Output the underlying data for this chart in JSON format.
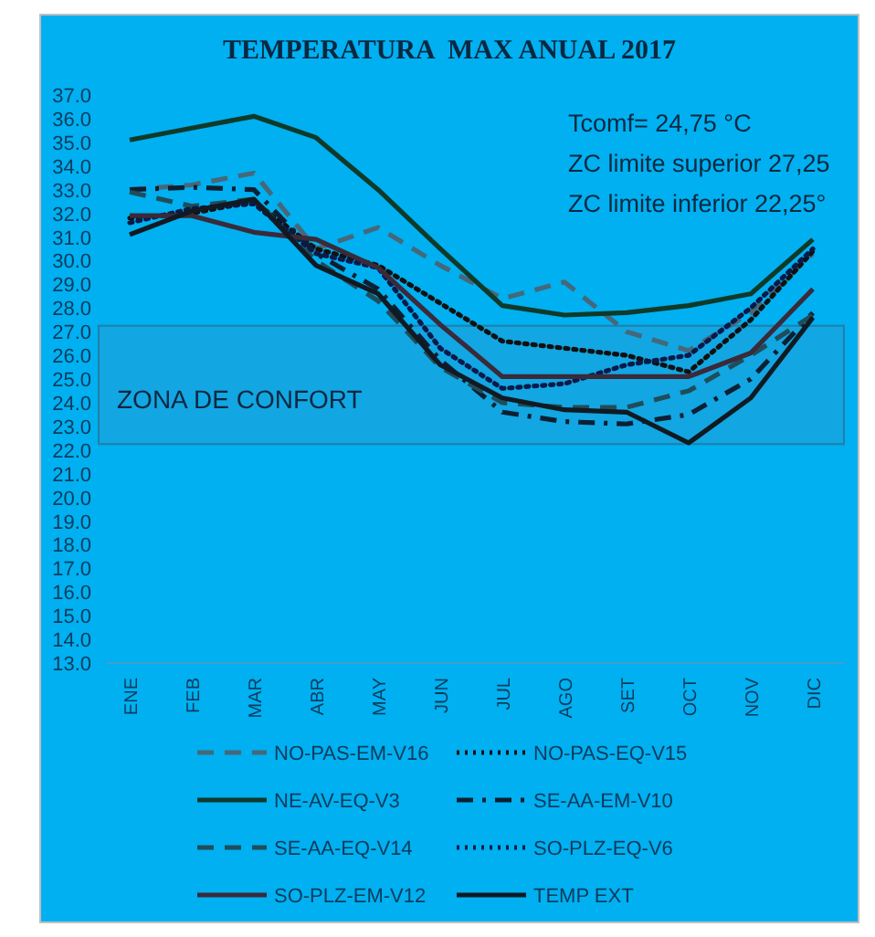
{
  "chart_data": {
    "type": "line",
    "title": "TEMPERATURA  MAX ANUAL 2017",
    "categories": [
      "ENE",
      "FEB",
      "MAR",
      "ABR",
      "MAY",
      "JUN",
      "JUL",
      "AGO",
      "SET",
      "OCT",
      "NOV",
      "DIC"
    ],
    "series": [
      {
        "name": "NO-PAS-EM-V16",
        "color": "#45687a",
        "line_style": "dashed",
        "values": [
          33.0,
          33.2,
          33.7,
          30.5,
          31.4,
          29.8,
          28.4,
          29.1,
          27.0,
          26.2,
          27.8,
          30.3
        ]
      },
      {
        "name": "NO-PAS-EQ-V15",
        "color": "#111111",
        "line_style": "dotted",
        "values": [
          31.8,
          32.0,
          32.5,
          30.5,
          29.8,
          28.2,
          26.6,
          26.3,
          26.0,
          25.3,
          27.5,
          30.4
        ]
      },
      {
        "name": "NE-AV-EQ-V3",
        "color": "#0f3a2a",
        "line_style": "solid",
        "values": [
          35.1,
          35.6,
          36.1,
          35.2,
          33.0,
          30.5,
          28.1,
          27.7,
          27.8,
          28.1,
          28.6,
          30.9
        ]
      },
      {
        "name": "SE-AA-EM-V10",
        "color": "#0d1f33",
        "line_style": "dashdot",
        "values": [
          33.0,
          33.1,
          33.0,
          30.3,
          28.8,
          25.8,
          23.6,
          23.2,
          23.1,
          23.5,
          25.0,
          27.8
        ]
      },
      {
        "name": "SE-AA-EQ-V14",
        "color": "#1f4d5a",
        "line_style": "dashed",
        "values": [
          32.9,
          32.3,
          32.6,
          30.0,
          28.3,
          25.5,
          24.0,
          23.8,
          23.8,
          24.5,
          26.0,
          27.7
        ]
      },
      {
        "name": "SO-PLZ-EQ-V6",
        "color": "#0a1a4a",
        "line_style": "dotted",
        "values": [
          31.6,
          32.2,
          32.4,
          30.3,
          29.7,
          26.3,
          24.6,
          24.8,
          25.6,
          26.0,
          28.0,
          30.5
        ]
      },
      {
        "name": "SO-PLZ-EM-V12",
        "color": "#3a2a3a",
        "line_style": "solid",
        "values": [
          31.9,
          31.9,
          31.2,
          30.9,
          29.7,
          27.3,
          25.1,
          25.1,
          25.1,
          25.1,
          26.1,
          28.8
        ]
      },
      {
        "name": "TEMP EXT",
        "color": "#111a22",
        "line_style": "solid",
        "values": [
          31.1,
          32.1,
          32.6,
          29.8,
          28.6,
          25.6,
          24.2,
          23.7,
          23.6,
          22.3,
          24.2,
          27.6
        ]
      }
    ],
    "ylim": [
      13,
      37
    ],
    "yticks": [
      {
        "value": 13,
        "label": "13.0"
      },
      {
        "value": 14,
        "label": "14.0"
      },
      {
        "value": 15,
        "label": "15.0"
      },
      {
        "value": 16,
        "label": "16.0"
      },
      {
        "value": 17,
        "label": "17.0"
      },
      {
        "value": 18,
        "label": "18.0"
      },
      {
        "value": 19,
        "label": "19.0"
      },
      {
        "value": 20,
        "label": "20.0"
      },
      {
        "value": 21,
        "label": "21.0"
      },
      {
        "value": 22,
        "label": "22.0"
      },
      {
        "value": 23,
        "label": "23.0"
      },
      {
        "value": 24,
        "label": "24.0"
      },
      {
        "value": 25,
        "label": "25.0"
      },
      {
        "value": 26,
        "label": "26.0"
      },
      {
        "value": 27,
        "label": "27.0"
      },
      {
        "value": 28,
        "label": "28.0"
      },
      {
        "value": 29,
        "label": "29.0"
      },
      {
        "value": 30,
        "label": "30.0"
      },
      {
        "value": 31,
        "label": "31.0"
      },
      {
        "value": 32,
        "label": "32.0"
      },
      {
        "value": 33,
        "label": "33.0"
      },
      {
        "value": 34,
        "label": "34.0"
      },
      {
        "value": 35,
        "label": "35.0"
      },
      {
        "value": 36,
        "label": "36.0"
      },
      {
        "value": 37,
        "label": "37.0"
      }
    ],
    "bands": [
      {
        "axis": "y",
        "from": 22.25,
        "to": 27.25,
        "label": "ZONA DE CONFORT",
        "color": "#12a6e2"
      }
    ],
    "annotations": [
      "Tcomf= 24,75 °C",
      "ZC limite superior 27,25",
      "ZC limite inferior 22,25°"
    ],
    "legend": "bottom",
    "grid": false,
    "marker": "none"
  }
}
